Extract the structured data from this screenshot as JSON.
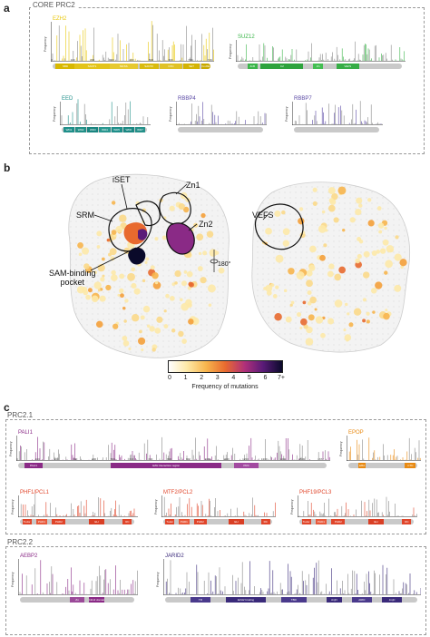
{
  "panels": {
    "a": "a",
    "b": "b",
    "c": "c"
  },
  "core_label": "CORE PRC2",
  "prc21_label": "PRC2.1",
  "prc22_label": "PRC2.2",
  "freq_axis": "Frequency",
  "plots": {
    "ezh2": {
      "title": "EZH2",
      "color": "#e8c70a",
      "ticks": [
        "0",
        "100",
        "200",
        "300",
        "400",
        "500",
        "600",
        "700",
        "746"
      ],
      "domains": [
        {
          "label": "SBD",
          "color": "#d8b800"
        },
        {
          "label": "SANT1",
          "color": "#e3c41a"
        },
        {
          "label": "MCSS",
          "color": "#e6c930"
        },
        {
          "label": "SANT2",
          "color": "#d9bb0e"
        },
        {
          "label": "CXC",
          "color": "#e0c225"
        },
        {
          "label": "SET",
          "color": "#d4b405"
        },
        {
          "label": "PostSET",
          "color": "#c9a900"
        }
      ]
    },
    "suz12": {
      "title": "SUZ12",
      "color": "#3bb54a",
      "domains": [
        {
          "label": "ZnB",
          "color": "#3bb54a"
        },
        {
          "label": "C2",
          "color": "#2ea33d"
        },
        {
          "label": "Zn",
          "color": "#43be52"
        },
        {
          "label": "VEFS",
          "color": "#36ad45"
        }
      ]
    },
    "eed": {
      "title": "EED",
      "color": "#1f8f8a",
      "domains": [
        {
          "label": "WD1",
          "color": "#1f8f8a"
        },
        {
          "label": "WD2",
          "color": "#228f86"
        },
        {
          "label": "WD3",
          "color": "#1a8580"
        },
        {
          "label": "WD4",
          "color": "#2a9790"
        },
        {
          "label": "WD5",
          "color": "#1f8f8a"
        },
        {
          "label": "WD6",
          "color": "#1c8883"
        },
        {
          "label": "WD7",
          "color": "#249089"
        }
      ]
    },
    "rbbp4": {
      "title": "RBBP4",
      "color": "#5b4aa5",
      "domains": []
    },
    "rbbp7": {
      "title": "RBBP7",
      "color": "#5b4aa5",
      "domains": []
    },
    "pali1": {
      "title": "PALI1",
      "color": "#8a2a86",
      "domains": [
        {
          "label": "PALI1",
          "color": "#8a2a86"
        },
        {
          "label": "EZH interaction region",
          "color": "#8a2a86"
        },
        {
          "label": "PRC",
          "color": "#a24aa0"
        }
      ],
      "ticks": [
        "0",
        "100",
        "200",
        "300",
        "400",
        "500",
        "600",
        "700",
        "800",
        "900",
        "1000",
        "1100",
        "1200",
        "1300",
        "1400",
        "1500",
        "1677"
      ]
    },
    "epop": {
      "title": "EPOP",
      "color": "#e88a12",
      "domains": [
        {
          "label": "EBA",
          "color": "#e88a12"
        },
        {
          "label": "CTD",
          "color": "#e88a12"
        }
      ]
    },
    "phf1": {
      "title": "PHF1/PCL1",
      "color": "#e0452a",
      "domains": [
        {
          "label": "Tudor",
          "color": "#e0452a"
        },
        {
          "label": "PHD1",
          "color": "#e85a3c"
        },
        {
          "label": "PHD2",
          "color": "#e0452a"
        },
        {
          "label": "EH",
          "color": "#d93f25"
        },
        {
          "label": "RC",
          "color": "#e0452a"
        }
      ]
    },
    "mtf2": {
      "title": "MTF2/PCL2",
      "color": "#e0452a",
      "domains": [
        {
          "label": "Tudor",
          "color": "#e0452a"
        },
        {
          "label": "PHD1",
          "color": "#e85a3c"
        },
        {
          "label": "PHD2",
          "color": "#e0452a"
        },
        {
          "label": "EH",
          "color": "#d93f25"
        },
        {
          "label": "RC",
          "color": "#e0452a"
        }
      ]
    },
    "phf19": {
      "title": "PHF19/PCL3",
      "color": "#e0452a",
      "domains": [
        {
          "label": "Tudor",
          "color": "#e0452a"
        },
        {
          "label": "PHD1",
          "color": "#e85a3c"
        },
        {
          "label": "PHD2",
          "color": "#e0452a"
        },
        {
          "label": "EH",
          "color": "#d93f25"
        },
        {
          "label": "RC",
          "color": "#e0452a"
        }
      ]
    },
    "aebp2": {
      "title": "AEBP2",
      "color": "#8a2a86",
      "domains": [
        {
          "label": "Zn",
          "color": "#9b4a99"
        },
        {
          "label": "C2H2 domain",
          "color": "#8a2a86"
        }
      ]
    },
    "jarid2": {
      "title": "JARID2",
      "color": "#3a2a7a",
      "domains": [
        {
          "label": "TR",
          "color": "#4a3a8c"
        },
        {
          "label": "EZH2 binding",
          "color": "#3a2a7a"
        },
        {
          "label": "TBD",
          "color": "#4a3a8c"
        },
        {
          "label": "JmjN",
          "color": "#3a2a7a"
        },
        {
          "label": "ARID",
          "color": "#4a3a8c"
        },
        {
          "label": "JmjC",
          "color": "#3a2a7a"
        }
      ]
    }
  },
  "structure_labels": {
    "iset": "iSET",
    "zn1": "Zn1",
    "srm": "SRM",
    "zn2": "Zn2",
    "sam": "SAM-binding\npocket",
    "vefs": "VEFS",
    "rot": "180°"
  },
  "colorbar": {
    "ticks": [
      "0",
      "1",
      "2",
      "3",
      "4",
      "5",
      "6",
      "7+"
    ],
    "title": "Frequency of mutations"
  }
}
